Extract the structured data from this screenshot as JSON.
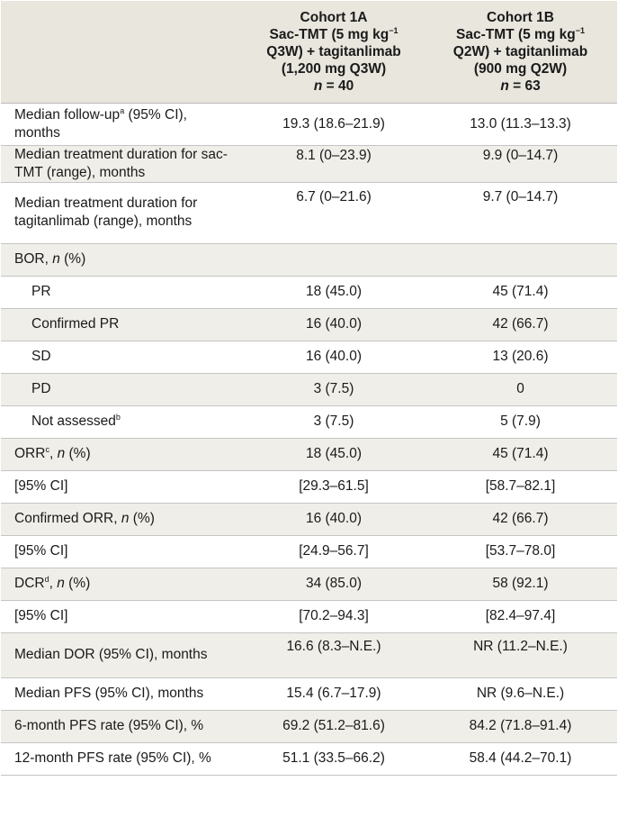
{
  "header": {
    "col1": "",
    "cohort_1a": {
      "line1": "Cohort 1A",
      "line2a": "Sac-TMT (5 mg kg",
      "line2sup": "−1",
      "line3": "Q3W) + tagitanlimab",
      "line4": "(1,200 mg Q3W)",
      "n_label": "n",
      "n_value": " = 40"
    },
    "cohort_1b": {
      "line1": "Cohort 1B",
      "line2a": "Sac-TMT (5 mg kg",
      "line2sup": "−1",
      "line3": "Q2W) + tagitanlimab",
      "line4": "(900 mg Q2W)",
      "n_label": "n",
      "n_value": " = 63"
    }
  },
  "rows": [
    {
      "label_a": "Median follow-up",
      "sup": "a",
      "label_b": " (95% CI), months",
      "c1": "19.3 (18.6–21.9)",
      "c2": "13.0 (11.3–13.3)"
    },
    {
      "label_a": "Median treatment duration for sac-TMT (range), months",
      "c1": "8.1 (0–23.9)",
      "c2": "9.9 (0–14.7)"
    },
    {
      "label_a": "Median treatment duration for tagitanlimab (range), months",
      "c1": "6.7 (0–21.6)",
      "c2": "9.7 (0–14.7)"
    },
    {
      "label_a": "BOR, ",
      "italic": "n",
      "label_b": " (%)",
      "c1": "",
      "c2": ""
    },
    {
      "label_a": "PR",
      "c1": "18 (45.0)",
      "c2": "45 (71.4)"
    },
    {
      "label_a": "Confirmed PR",
      "c1": "16 (40.0)",
      "c2": "42 (66.7)"
    },
    {
      "label_a": "SD",
      "c1": "16 (40.0)",
      "c2": "13 (20.6)"
    },
    {
      "label_a": "PD",
      "c1": "3 (7.5)",
      "c2": "0"
    },
    {
      "label_a": "Not assessed",
      "sup": "b",
      "c1": "3 (7.5)",
      "c2": "5 (7.9)"
    },
    {
      "label_a": "ORR",
      "sup": "c",
      "label_b": ", ",
      "italic": "n",
      "label_c": " (%)",
      "c1": "18 (45.0)",
      "c2": "45 (71.4)"
    },
    {
      "label_a": "[95% CI]",
      "c1": "[29.3–61.5]",
      "c2": "[58.7–82.1]"
    },
    {
      "label_a": "Confirmed ORR, ",
      "italic": "n",
      "label_b": " (%)",
      "c1": "16 (40.0)",
      "c2": "42 (66.7)"
    },
    {
      "label_a": "[95% CI]",
      "c1": "[24.9–56.7]",
      "c2": "[53.7–78.0]"
    },
    {
      "label_a": "DCR",
      "sup": "d",
      "label_b": ", ",
      "italic": "n",
      "label_c": " (%)",
      "c1": "34 (85.0)",
      "c2": "58 (92.1)"
    },
    {
      "label_a": "[95% CI]",
      "c1": "[70.2–94.3]",
      "c2": "[82.4–97.4]"
    },
    {
      "label_a": "Median DOR (95% CI), months",
      "c1": "16.6 (8.3–N.E.)",
      "c2": "NR (11.2–N.E.)"
    },
    {
      "label_a": "Median PFS (95% CI), months",
      "c1": "15.4 (6.7–17.9)",
      "c2": "NR (9.6–N.E.)"
    },
    {
      "label_a": "6-month PFS rate (95% CI), %",
      "c1": "69.2 (51.2–81.6)",
      "c2": "84.2 (71.8–91.4)"
    },
    {
      "label_a": "12-month PFS rate (95% CI), %",
      "c1": "51.1 (33.5–66.2)",
      "c2": "58.4 (44.2–70.1)"
    }
  ]
}
